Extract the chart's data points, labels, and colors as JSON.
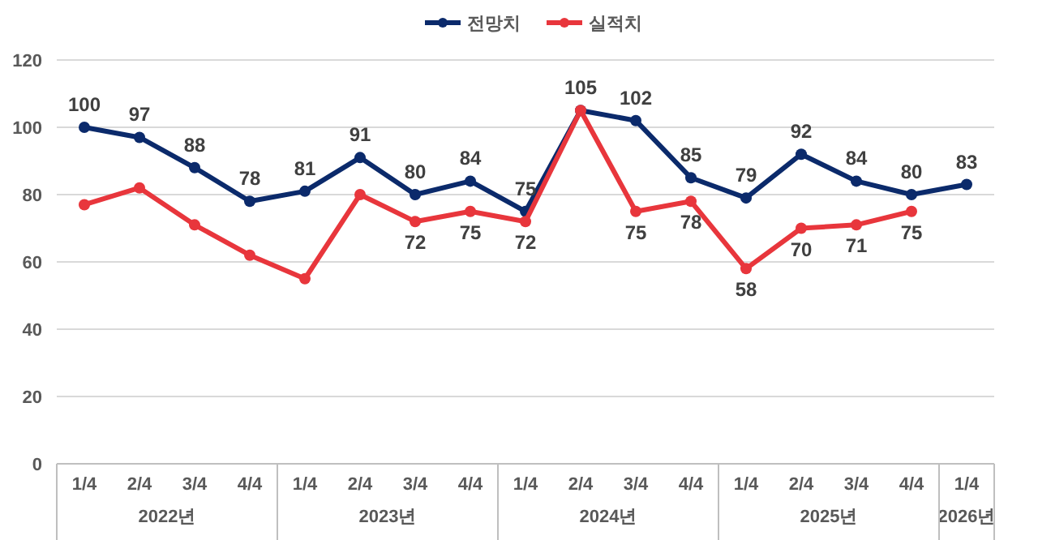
{
  "chart_data": {
    "type": "line",
    "categories": [
      "1/4",
      "2/4",
      "3/4",
      "4/4",
      "1/4",
      "2/4",
      "3/4",
      "4/4",
      "1/4",
      "2/4",
      "3/4",
      "4/4",
      "1/4",
      "2/4",
      "3/4",
      "4/4",
      "1/4"
    ],
    "series": [
      {
        "name": "전망치",
        "color": "#0b2a6b",
        "values": [
          100,
          97,
          88,
          78,
          81,
          91,
          80,
          84,
          75,
          105,
          102,
          85,
          79,
          92,
          84,
          80,
          83
        ],
        "value_labels": [
          "100",
          "97",
          "88",
          "78",
          "81",
          "91",
          "80",
          "84",
          "75",
          "105",
          "102",
          "85",
          "79",
          "92",
          "84",
          "80",
          "83"
        ]
      },
      {
        "name": "실적치",
        "color": "#e8363c",
        "values": [
          77,
          82,
          71,
          62,
          55,
          80,
          72,
          75,
          72,
          105,
          75,
          78,
          58,
          70,
          71,
          75,
          null
        ],
        "value_labels": [
          null,
          null,
          null,
          null,
          null,
          null,
          "72",
          "75",
          "72",
          null,
          "75",
          "78",
          "58",
          "70",
          "71",
          "75",
          null
        ]
      }
    ],
    "annotations": [
      "2022년",
      "2023년",
      "2024년",
      "2025년",
      "2026년"
    ],
    "ylim": [
      0,
      120
    ],
    "yticks": [
      0,
      20,
      40,
      60,
      80,
      100,
      120
    ],
    "grid": "y",
    "legend": "top",
    "marker": "circle",
    "line_style": "solid"
  }
}
